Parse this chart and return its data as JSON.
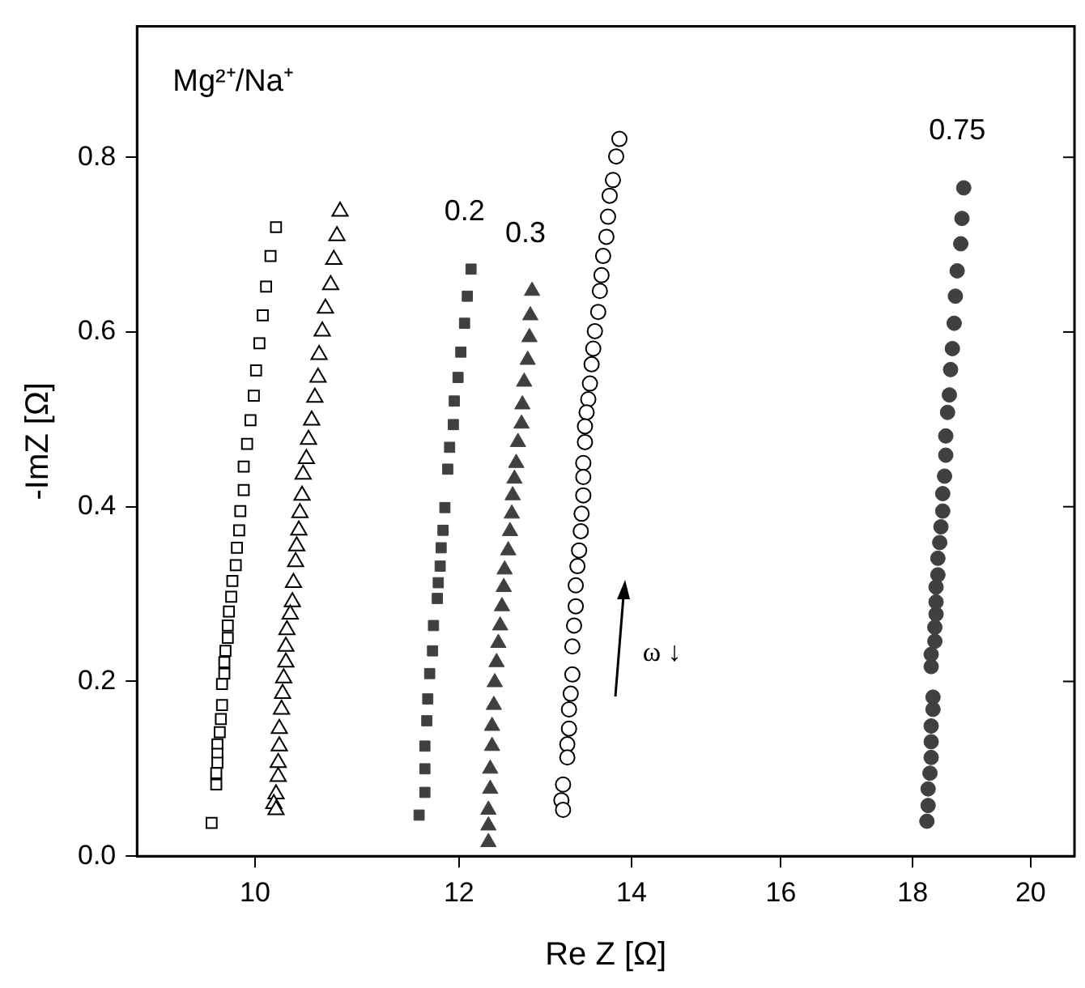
{
  "chart_data": {
    "type": "scatter",
    "title": "Mg²⁺/Na⁺",
    "xlabel": "Re Z [Ω]",
    "ylabel": "-ImZ [Ω]",
    "log": "x",
    "xlim": [
      9,
      20.8
    ],
    "xticks": [
      10,
      12,
      14,
      16,
      18,
      20
    ],
    "ylim": [
      0,
      0.95
    ],
    "yticks": [
      {
        "value": 0,
        "label": "0.0"
      },
      0.2,
      0.4,
      0.6,
      0.8
    ],
    "grid": false,
    "legend": false,
    "annotations": [
      "ω ↓"
    ],
    "series": [
      {
        "marker": "square",
        "color": "#000000",
        "x": [
          10.19,
          10.14,
          10.1,
          10.07,
          10.04,
          10.01,
          9.99,
          9.96,
          9.93,
          9.9,
          9.9,
          9.87,
          9.86,
          9.84,
          9.83,
          9.8,
          9.79,
          9.77,
          9.76,
          9.76,
          9.74,
          9.73,
          9.73,
          9.71,
          9.71,
          9.7,
          9.69,
          9.67,
          9.67,
          9.67,
          9.66,
          9.66,
          9.62
        ],
        "values": [
          0.72,
          0.687,
          0.652,
          0.619,
          0.587,
          0.556,
          0.527,
          0.499,
          0.472,
          0.446,
          0.419,
          0.395,
          0.373,
          0.353,
          0.333,
          0.315,
          0.297,
          0.28,
          0.264,
          0.25,
          0.235,
          0.222,
          0.209,
          0.197,
          0.173,
          0.157,
          0.142,
          0.128,
          0.117,
          0.107,
          0.095,
          0.082,
          0.038
        ]
      },
      {
        "marker": "triangle",
        "color": "#000000",
        "x": [
          10.79,
          10.76,
          10.73,
          10.7,
          10.65,
          10.62,
          10.59,
          10.58,
          10.55,
          10.52,
          10.49,
          10.47,
          10.44,
          10.43,
          10.41,
          10.4,
          10.38,
          10.37,
          10.35,
          10.34,
          10.32,
          10.29,
          10.28,
          10.28,
          10.26,
          10.25,
          10.24,
          10.22,
          10.22,
          10.21,
          10.21,
          10.19,
          10.17,
          10.19
        ],
        "values": [
          0.738,
          0.71,
          0.683,
          0.654,
          0.627,
          0.601,
          0.574,
          0.548,
          0.525,
          0.499,
          0.477,
          0.455,
          0.437,
          0.413,
          0.393,
          0.373,
          0.355,
          0.337,
          0.313,
          0.291,
          0.277,
          0.259,
          0.24,
          0.222,
          0.204,
          0.186,
          0.168,
          0.146,
          0.126,
          0.107,
          0.091,
          0.071,
          0.06,
          0.053
        ]
      },
      {
        "name": "0.2",
        "marker": "square",
        "color": "#404040",
        "x": [
          12.13,
          12.09,
          12.06,
          12.02,
          11.99,
          11.95,
          11.94,
          11.9,
          11.88,
          11.85,
          11.83,
          11.81,
          11.8,
          11.78,
          11.77,
          11.73,
          11.72,
          11.69,
          11.67,
          11.66,
          11.64,
          11.64,
          11.64,
          11.58
        ],
        "values": [
          0.672,
          0.641,
          0.61,
          0.577,
          0.548,
          0.521,
          0.494,
          0.468,
          0.443,
          0.399,
          0.373,
          0.353,
          0.332,
          0.313,
          0.295,
          0.264,
          0.235,
          0.209,
          0.18,
          0.155,
          0.126,
          0.1,
          0.073,
          0.047
        ]
      },
      {
        "name": "0.3",
        "marker": "triangle",
        "color": "#404040",
        "x": [
          12.81,
          12.79,
          12.78,
          12.76,
          12.72,
          12.7,
          12.69,
          12.65,
          12.63,
          12.61,
          12.59,
          12.58,
          12.56,
          12.54,
          12.5,
          12.49,
          12.47,
          12.45,
          12.43,
          12.41,
          12.39,
          12.38,
          12.36,
          12.36,
          12.34,
          12.34,
          12.32,
          12.32,
          12.32
        ],
        "values": [
          0.647,
          0.619,
          0.594,
          0.568,
          0.543,
          0.517,
          0.495,
          0.474,
          0.45,
          0.432,
          0.413,
          0.392,
          0.372,
          0.35,
          0.328,
          0.308,
          0.286,
          0.264,
          0.244,
          0.222,
          0.199,
          0.173,
          0.149,
          0.126,
          0.1,
          0.077,
          0.053,
          0.035,
          0.016
        ]
      },
      {
        "marker": "circle",
        "color": "#000000",
        "x": [
          13.85,
          13.81,
          13.77,
          13.73,
          13.71,
          13.69,
          13.65,
          13.63,
          13.61,
          13.59,
          13.55,
          13.53,
          13.51,
          13.49,
          13.47,
          13.45,
          13.43,
          13.43,
          13.41,
          13.41,
          13.41,
          13.39,
          13.38,
          13.36,
          13.34,
          13.32,
          13.32,
          13.3,
          13.28,
          13.28,
          13.26,
          13.24,
          13.24,
          13.22,
          13.22,
          13.17,
          13.15,
          13.17
        ],
        "values": [
          0.821,
          0.801,
          0.774,
          0.756,
          0.732,
          0.709,
          0.687,
          0.665,
          0.647,
          0.623,
          0.601,
          0.581,
          0.563,
          0.541,
          0.523,
          0.508,
          0.492,
          0.474,
          0.45,
          0.434,
          0.413,
          0.392,
          0.372,
          0.35,
          0.332,
          0.31,
          0.286,
          0.264,
          0.24,
          0.208,
          0.186,
          0.168,
          0.146,
          0.128,
          0.113,
          0.082,
          0.064,
          0.053
        ]
      },
      {
        "name": "0.75",
        "marker": "circle",
        "color": "#404040",
        "x": [
          18.84,
          18.81,
          18.79,
          18.73,
          18.7,
          18.68,
          18.65,
          18.62,
          18.6,
          18.57,
          18.54,
          18.54,
          18.52,
          18.49,
          18.49,
          18.46,
          18.44,
          18.41,
          18.41,
          18.38,
          18.38,
          18.38,
          18.36,
          18.36,
          18.3,
          18.3,
          18.33,
          18.33,
          18.3,
          18.3,
          18.3,
          18.28,
          18.25,
          18.25,
          18.23
        ],
        "values": [
          0.765,
          0.73,
          0.701,
          0.67,
          0.641,
          0.61,
          0.581,
          0.557,
          0.528,
          0.508,
          0.481,
          0.459,
          0.435,
          0.415,
          0.395,
          0.377,
          0.359,
          0.341,
          0.322,
          0.308,
          0.291,
          0.277,
          0.262,
          0.246,
          0.231,
          0.217,
          0.182,
          0.168,
          0.149,
          0.131,
          0.113,
          0.095,
          0.077,
          0.058,
          0.04
        ]
      }
    ]
  }
}
